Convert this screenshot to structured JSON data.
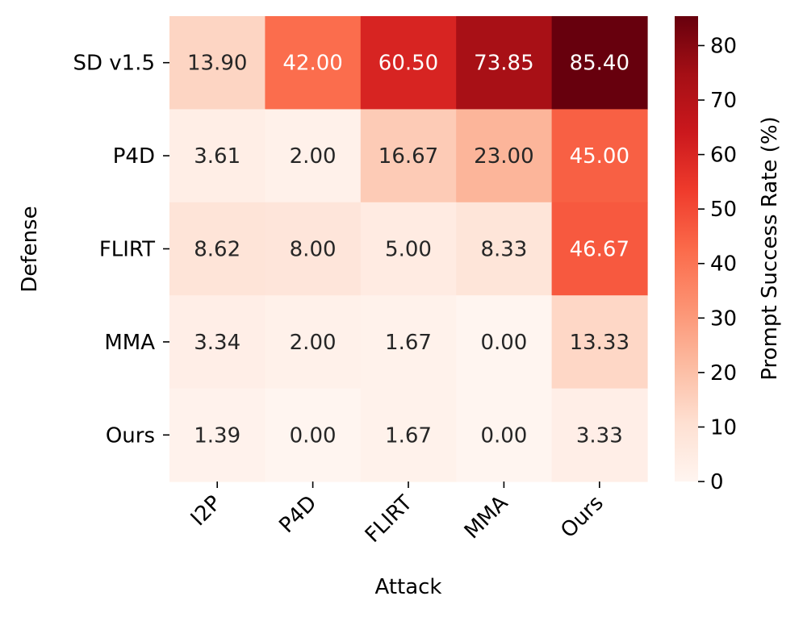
{
  "chart_data": {
    "type": "heatmap",
    "xlabel": "Attack",
    "ylabel": "Defense",
    "x_categories": [
      "I2P",
      "P4D",
      "FLIRT",
      "MMA",
      "Ours"
    ],
    "y_categories": [
      "SD v1.5",
      "P4D",
      "FLIRT",
      "MMA",
      "Ours"
    ],
    "values": [
      [
        13.9,
        42.0,
        60.5,
        73.85,
        85.4
      ],
      [
        3.61,
        2.0,
        16.67,
        23.0,
        45.0
      ],
      [
        8.62,
        8.0,
        5.0,
        8.33,
        46.67
      ],
      [
        3.34,
        2.0,
        1.67,
        0.0,
        13.33
      ],
      [
        1.39,
        0.0,
        1.67,
        0.0,
        3.33
      ]
    ],
    "cell_labels": [
      [
        "13.90",
        "42.00",
        "60.50",
        "73.85",
        "85.40"
      ],
      [
        "3.61",
        "2.00",
        "16.67",
        "23.00",
        "45.00"
      ],
      [
        "8.62",
        "8.00",
        "5.00",
        "8.33",
        "46.67"
      ],
      [
        "3.34",
        "2.00",
        "1.67",
        "0.00",
        "13.33"
      ],
      [
        "1.39",
        "0.00",
        "1.67",
        "0.00",
        "3.33"
      ]
    ],
    "colorbar": {
      "label": "Prompt Success Rate (%)",
      "range": [
        0,
        85.4
      ],
      "ticks": [
        0,
        10,
        20,
        30,
        40,
        50,
        60,
        70,
        80
      ],
      "tick_labels": [
        "0",
        "10",
        "20",
        "30",
        "40",
        "50",
        "60",
        "70",
        "80"
      ]
    },
    "colormap": "Reds"
  }
}
